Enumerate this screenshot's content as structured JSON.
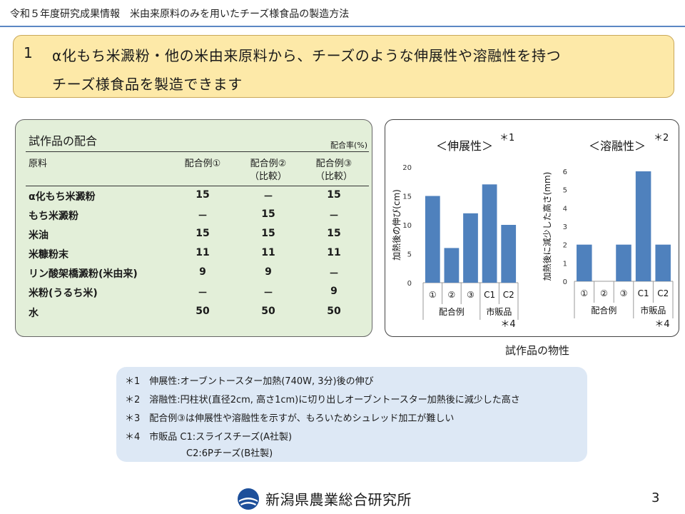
{
  "header": {
    "title": "令和５年度研究成果情報　米由来原料のみを用いたチーズ様食品の製造方法"
  },
  "headline": {
    "number": "1",
    "line1": "α化もち米澱粉・他の米由来原料から、チーズのような伸展性や溶融性を持つ",
    "line2": "チーズ様食品を製造できます"
  },
  "recipe_table": {
    "title": "試作品の配合",
    "unit": "配合率(%)",
    "columns": [
      "原料",
      "配合例①",
      "配合例②",
      "配合例③"
    ],
    "column_notes": [
      "",
      "",
      "（比較）",
      "（比較）"
    ],
    "rows": [
      {
        "ingredient": "α化もち米澱粉",
        "values": [
          "15",
          "－",
          "15"
        ]
      },
      {
        "ingredient": "もち米澱粉",
        "values": [
          "－",
          "15",
          "－"
        ]
      },
      {
        "ingredient": "米油",
        "values": [
          "15",
          "15",
          "15"
        ]
      },
      {
        "ingredient": "米糠粉末",
        "values": [
          "11",
          "11",
          "11"
        ]
      },
      {
        "ingredient": "リン酸架橋澱粉(米由来)",
        "values": [
          "9",
          "9",
          "－"
        ]
      },
      {
        "ingredient": "米粉(うるち米)",
        "values": [
          "－",
          "－",
          "9"
        ]
      },
      {
        "ingredient": "水",
        "values": [
          "50",
          "50",
          "50"
        ]
      }
    ]
  },
  "chart_data": [
    {
      "type": "bar",
      "title": "＜伸展性＞",
      "title_note": "＊1",
      "ylabel": "加熱後の伸び(cm)",
      "ylim": [
        0,
        20
      ],
      "yticks": [
        "0",
        "5",
        "10",
        "15",
        "20"
      ],
      "categories": [
        "①",
        "②",
        "③",
        "C1",
        "C2"
      ],
      "values": [
        15,
        6,
        12,
        17,
        10
      ],
      "groups": [
        {
          "label": "配合例",
          "span": 3
        },
        {
          "label": "市販品",
          "span": 2
        }
      ],
      "group_note": "＊4",
      "grid": false,
      "color": "#4f81bd"
    },
    {
      "type": "bar",
      "title": "＜溶融性＞",
      "title_note": "＊2",
      "ylabel": "加熱後に減少した高さ(mm)",
      "ylim": [
        0,
        6
      ],
      "yticks": [
        "0",
        "1",
        "2",
        "3",
        "4",
        "5",
        "6"
      ],
      "categories": [
        "①",
        "②",
        "③",
        "C1",
        "C2"
      ],
      "values": [
        2,
        0,
        2,
        6,
        2
      ],
      "groups": [
        {
          "label": "配合例",
          "span": 3
        },
        {
          "label": "市販品",
          "span": 2
        }
      ],
      "group_note": "＊4",
      "grid": false,
      "color": "#4f81bd"
    }
  ],
  "chart_caption": "試作品の物性",
  "notes": [
    "＊1　伸展性:オーブントースター加熱(740W, 3分)後の伸び",
    "＊2　溶融性:円柱状(直径2cm, 高さ1cm)に切り出しオーブントースター加熱後に減少した高さ",
    "＊3　配合例③は伸展性や溶融性を示すが、もろいためシュレッド加工が難しい",
    "＊4　市販品 C1:スライスチーズ(A社製)",
    "C2:6Pチーズ(B社製)"
  ],
  "footer": {
    "org": "新潟県農業総合研究所",
    "page": "3"
  },
  "colors": {
    "header_rule": "#5b87c4",
    "headline_bg": "#fde9a8",
    "table_bg": "#e3efd9",
    "notes_bg": "#dde8f5",
    "bar": "#4f81bd"
  }
}
